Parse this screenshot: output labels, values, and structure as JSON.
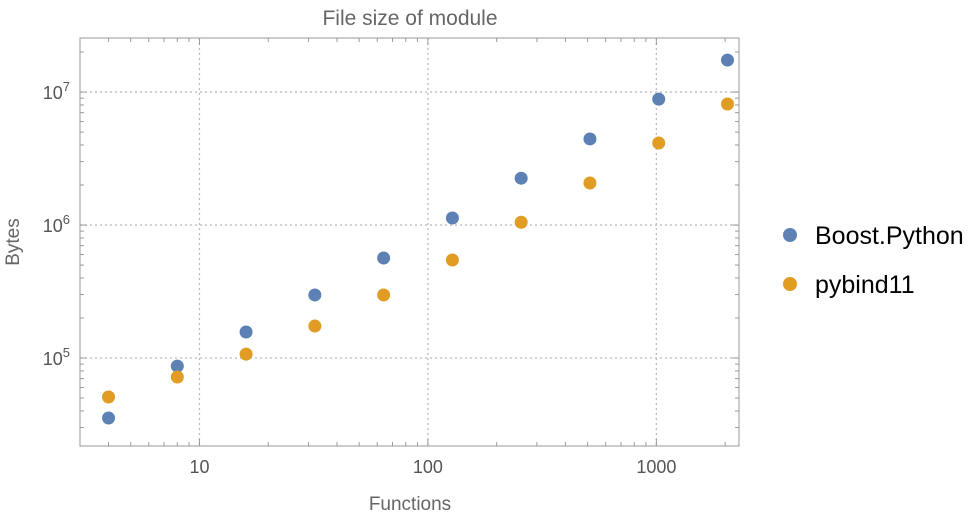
{
  "chart_data": {
    "type": "scatter",
    "title": "File size of module",
    "xlabel": "Functions",
    "ylabel": "Bytes",
    "x_scale": "log",
    "y_scale": "log",
    "xlim": [
      3.0,
      2300
    ],
    "ylim": [
      21800,
      25500000
    ],
    "grid": true,
    "legend_position": "right",
    "x_ticks": [
      {
        "value": 10,
        "label": "10"
      },
      {
        "value": 100,
        "label": "100"
      },
      {
        "value": 1000,
        "label": "1000"
      }
    ],
    "y_ticks": [
      {
        "value": 100000,
        "base": "10",
        "exp": "5"
      },
      {
        "value": 1000000,
        "base": "10",
        "exp": "6"
      },
      {
        "value": 10000000,
        "base": "10",
        "exp": "7"
      }
    ],
    "x": [
      4,
      8,
      16,
      32,
      64,
      128,
      256,
      512,
      1024,
      2048
    ],
    "series": [
      {
        "name": "Boost.Python",
        "color": "#5E81B5",
        "values": [
          35400,
          87000,
          157000,
          298000,
          565000,
          1130000,
          2250000,
          4440000,
          8850000,
          17400000
        ]
      },
      {
        "name": "pybind11",
        "color": "#E19C24",
        "values": [
          50900,
          72000,
          107000,
          174000,
          298000,
          546000,
          1050000,
          2070000,
          4140000,
          8130000
        ]
      }
    ]
  }
}
